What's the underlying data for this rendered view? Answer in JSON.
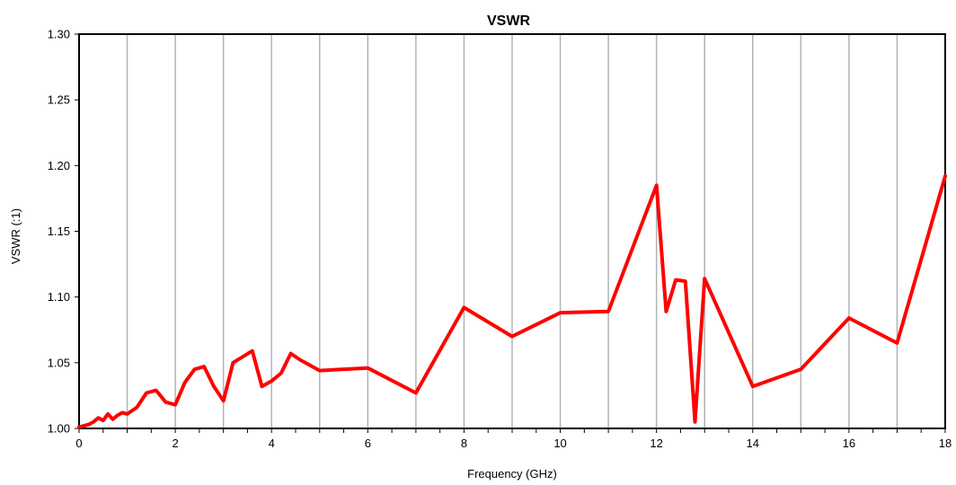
{
  "chart_data": {
    "type": "line",
    "title": "VSWR",
    "xlabel": "Frequency (GHz)",
    "ylabel": "VSWR (:1)",
    "xlim": [
      0,
      18
    ],
    "ylim": [
      1.0,
      1.3
    ],
    "x_ticks": [
      0,
      2,
      4,
      6,
      8,
      10,
      12,
      14,
      16,
      18
    ],
    "x_tick_labels": [
      "0",
      "2",
      "4",
      "6",
      "8",
      "10",
      "12",
      "14",
      "16",
      "18"
    ],
    "y_ticks": [
      1.0,
      1.05,
      1.1,
      1.15,
      1.2,
      1.25,
      1.3
    ],
    "y_tick_labels": [
      "1.00",
      "1.05",
      "1.10",
      "1.15",
      "1.20",
      "1.25",
      "1.30"
    ],
    "vertical_grid": true,
    "horizontal_grid": false,
    "legend": "none",
    "line_color": "#ff0000",
    "grid_color": "#b3b3b3",
    "series": [
      {
        "x": [
          0,
          0.1,
          0.2,
          0.3,
          0.4,
          0.5,
          0.6,
          0.7,
          0.8,
          0.9,
          1.0,
          1.2,
          1.4,
          1.6,
          1.8,
          2.0,
          2.2,
          2.4,
          2.6,
          2.8,
          3.0,
          3.2,
          3.6,
          3.8,
          4.0,
          4.2,
          4.4,
          4.6,
          5.0,
          6.0,
          7.0,
          8.0,
          9.0,
          10.0,
          11.0,
          12.0,
          12.2,
          12.4,
          12.6,
          12.8,
          13.0,
          14.0,
          15.0,
          16.0,
          17.0,
          18.0
        ],
        "y": [
          1.001,
          1.002,
          1.003,
          1.005,
          1.008,
          1.006,
          1.011,
          1.007,
          1.01,
          1.012,
          1.011,
          1.016,
          1.027,
          1.029,
          1.02,
          1.018,
          1.035,
          1.045,
          1.047,
          1.032,
          1.021,
          1.05,
          1.059,
          1.032,
          1.036,
          1.042,
          1.057,
          1.052,
          1.044,
          1.046,
          1.027,
          1.092,
          1.07,
          1.088,
          1.089,
          1.185,
          1.089,
          1.113,
          1.112,
          1.005,
          1.114,
          1.032,
          1.045,
          1.084,
          1.065,
          1.192
        ]
      }
    ]
  }
}
